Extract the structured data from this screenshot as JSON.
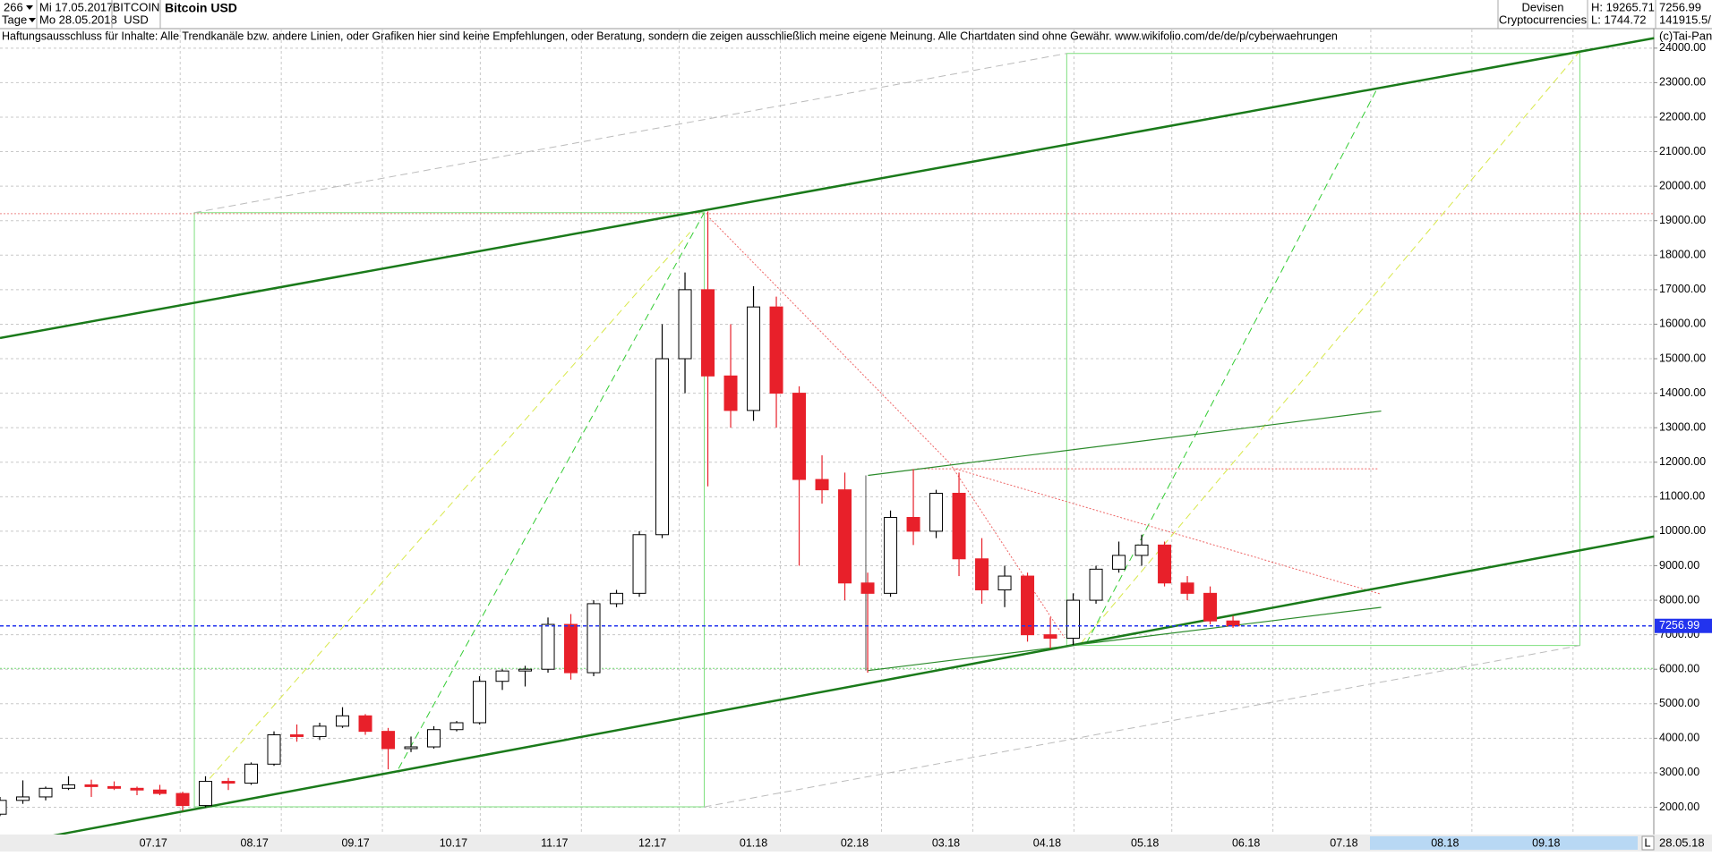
{
  "header": {
    "count": "266",
    "from_date": "Mi 17.05.2017",
    "period": "Tage",
    "to_date": "Mo 28.05.2018",
    "symbol": "BITCOIN",
    "currency": "USD",
    "market": "Devisen",
    "group": "Cryptocurrencies",
    "high": "H: 19265.71",
    "low": "L: 1744.72",
    "volume": "141915.5/",
    "disclaimer": "Haftungsausschluss für Inhalte: Alle Trendkanäle bzw. andere Linien, oder Grafiken hier sind keine Empfehlungen, oder Beratung, sondern die zeigen ausschließlich meine eigene Meinung. Alle Chartdaten sind ohne Gewähr.  www.wikifolio.com/de/de/p/cyberwaehrungen",
    "copyright": "(c)Tai-Pan",
    "end_date": "28.05.18",
    "scale_mode": "L"
  },
  "chart_data": {
    "type": "candlestick",
    "title": "Bitcoin USD",
    "x": [
      "2017-05-15",
      "2017-05-22",
      "2017-05-29",
      "2017-06-05",
      "2017-06-12",
      "2017-06-19",
      "2017-06-26",
      "2017-07-03",
      "2017-07-10",
      "2017-07-17",
      "2017-07-24",
      "2017-07-31",
      "2017-08-07",
      "2017-08-14",
      "2017-08-21",
      "2017-08-28",
      "2017-09-04",
      "2017-09-11",
      "2017-09-18",
      "2017-09-25",
      "2017-10-02",
      "2017-10-09",
      "2017-10-16",
      "2017-10-23",
      "2017-10-30",
      "2017-11-06",
      "2017-11-13",
      "2017-11-20",
      "2017-11-27",
      "2017-12-04",
      "2017-12-11",
      "2017-12-18",
      "2017-12-25",
      "2018-01-01",
      "2018-01-08",
      "2018-01-15",
      "2018-01-22",
      "2018-01-29",
      "2018-02-05",
      "2018-02-12",
      "2018-02-19",
      "2018-02-26",
      "2018-03-05",
      "2018-03-12",
      "2018-03-19",
      "2018-03-26",
      "2018-04-02",
      "2018-04-09",
      "2018-04-16",
      "2018-04-23",
      "2018-04-30",
      "2018-05-07",
      "2018-05-14",
      "2018-05-21",
      "2018-05-28"
    ],
    "open": [
      1800,
      2200,
      2300,
      2550,
      2650,
      2600,
      2550,
      2500,
      2400,
      2050,
      2750,
      2700,
      3250,
      4100,
      4050,
      4350,
      4650,
      4200,
      3700,
      3750,
      4250,
      4450,
      5650,
      5950,
      6000,
      7300,
      5900,
      7900,
      8200,
      9900,
      15000,
      17000,
      14500,
      13500,
      16500,
      14000,
      11500,
      11200,
      8500,
      8200,
      10400,
      10000,
      11100,
      9200,
      8300,
      8700,
      7000,
      6900,
      8000,
      8900,
      9300,
      9600,
      8500,
      8200,
      7400
    ],
    "high": [
      2300,
      2780,
      2600,
      2900,
      2800,
      2750,
      2600,
      2650,
      2450,
      2900,
      2850,
      3300,
      4200,
      4400,
      4450,
      4900,
      4700,
      4300,
      4050,
      4350,
      4500,
      5800,
      6000,
      6100,
      7500,
      7600,
      8000,
      8300,
      10000,
      16000,
      17500,
      19265.71,
      16000,
      17100,
      16800,
      14200,
      12200,
      11700,
      8800,
      10600,
      11800,
      11200,
      11700,
      9800,
      9000,
      8800,
      7500,
      8200,
      9000,
      9700,
      9900,
      9700,
      8700,
      8400,
      7550
    ],
    "low": [
      1744.72,
      2100,
      2200,
      2500,
      2300,
      2500,
      2350,
      2350,
      1900,
      2000,
      2500,
      2650,
      3200,
      3900,
      3950,
      4300,
      4100,
      3100,
      3600,
      3700,
      4200,
      4400,
      5400,
      5500,
      5900,
      5700,
      5800,
      7800,
      8100,
      9800,
      14000,
      11300,
      13000,
      13200,
      13000,
      9000,
      10800,
      8000,
      5900,
      8100,
      9600,
      9800,
      8700,
      7900,
      7800,
      6800,
      6600,
      6700,
      7900,
      8800,
      9000,
      8400,
      8000,
      7300,
      7200
    ],
    "close": [
      2200,
      2300,
      2550,
      2650,
      2600,
      2550,
      2500,
      2400,
      2050,
      2750,
      2700,
      3250,
      4100,
      4050,
      4350,
      4650,
      4200,
      3700,
      3750,
      4250,
      4450,
      5650,
      5950,
      6000,
      7300,
      5900,
      7900,
      8200,
      9900,
      15000,
      17000,
      14500,
      13500,
      16500,
      14000,
      11500,
      11200,
      8500,
      8200,
      10400,
      10000,
      11100,
      9200,
      8300,
      8700,
      7000,
      6900,
      8000,
      8900,
      9300,
      9600,
      8500,
      8200,
      7400,
      7256.99
    ],
    "up_color": "#000000",
    "down_color": "#e8202a",
    "last_color": "#2233ee",
    "xlim": [
      "2017-05-15",
      "2018-10-04"
    ],
    "xticks": [
      {
        "value": "2017-07-01",
        "label": "07.17"
      },
      {
        "value": "2017-08-01",
        "label": "08.17"
      },
      {
        "value": "2017-09-01",
        "label": "09.17"
      },
      {
        "value": "2017-10-01",
        "label": "10.17"
      },
      {
        "value": "2017-11-01",
        "label": "11.17"
      },
      {
        "value": "2017-12-01",
        "label": "12.17"
      },
      {
        "value": "2018-01-01",
        "label": "01.18"
      },
      {
        "value": "2018-02-01",
        "label": "02.18"
      },
      {
        "value": "2018-03-01",
        "label": "03.18"
      },
      {
        "value": "2018-04-01",
        "label": "04.18"
      },
      {
        "value": "2018-05-01",
        "label": "05.18"
      },
      {
        "value": "2018-06-01",
        "label": "06.18"
      },
      {
        "value": "2018-07-01",
        "label": "07.18"
      },
      {
        "value": "2018-08-01",
        "label": "08.18"
      },
      {
        "value": "2018-09-01",
        "label": "09.18"
      }
    ],
    "ylim": [
      1210,
      24540
    ],
    "yticks": [
      {
        "value": 2000,
        "label": "2000.00"
      },
      {
        "value": 3000,
        "label": "3000.00"
      },
      {
        "value": 4000,
        "label": "4000.00"
      },
      {
        "value": 5000,
        "label": "5000.00"
      },
      {
        "value": 6000,
        "label": "6000.00"
      },
      {
        "value": 7000,
        "label": "7000.00"
      },
      {
        "value": 8000,
        "label": "8000.00"
      },
      {
        "value": 9000,
        "label": "9000.00"
      },
      {
        "value": 10000,
        "label": "10000.00"
      },
      {
        "value": 11000,
        "label": "11000.00"
      },
      {
        "value": 12000,
        "label": "12000.00"
      },
      {
        "value": 13000,
        "label": "13000.00"
      },
      {
        "value": 14000,
        "label": "14000.00"
      },
      {
        "value": 15000,
        "label": "15000.00"
      },
      {
        "value": 16000,
        "label": "16000.00"
      },
      {
        "value": 17000,
        "label": "17000.00"
      },
      {
        "value": 18000,
        "label": "18000.00"
      },
      {
        "value": 19000,
        "label": "19000.00"
      },
      {
        "value": 20000,
        "label": "20000.00"
      },
      {
        "value": 21000,
        "label": "21000.00"
      },
      {
        "value": 22000,
        "label": "22000.00"
      },
      {
        "value": 23000,
        "label": "23000.00"
      },
      {
        "value": 24000,
        "label": "24000.00"
      }
    ],
    "grid": true
  }
}
